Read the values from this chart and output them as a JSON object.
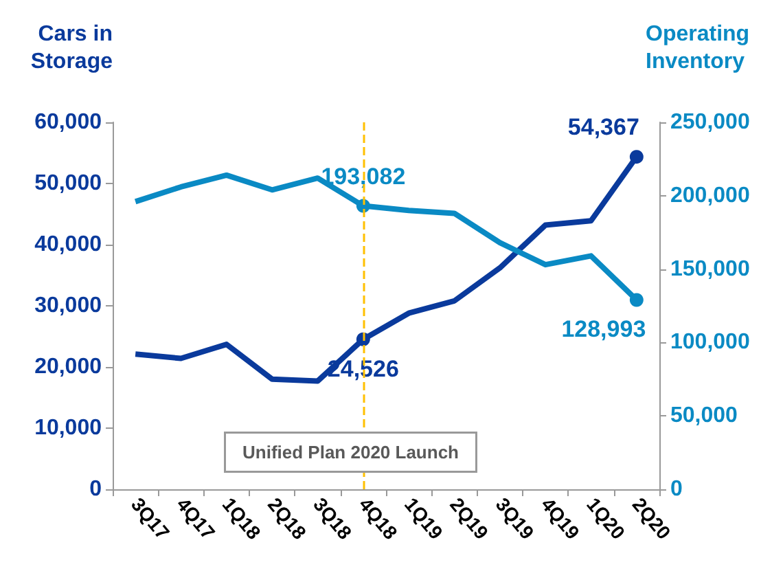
{
  "chart_data": {
    "type": "line",
    "ylabel": "Cars in Storage",
    "y2label": "Operating Inventory",
    "categories": [
      "3Q17",
      "4Q17",
      "1Q18",
      "2Q18",
      "3Q18",
      "4Q18",
      "1Q19",
      "2Q19",
      "3Q19",
      "4Q19",
      "1Q20",
      "2Q20"
    ],
    "series": [
      {
        "color": "#0a3a9c",
        "values": [
          22100,
          21400,
          23700,
          18000,
          17700,
          24526,
          28800,
          30800,
          36200,
          43200,
          43900,
          54367
        ],
        "value_labels": [
          null,
          null,
          null,
          null,
          null,
          "24,526",
          null,
          null,
          null,
          null,
          null,
          "54,367"
        ]
      },
      {
        "color": "#0a8ac4",
        "axis": "y2",
        "values": [
          196000,
          206000,
          214000,
          204000,
          212000,
          193082,
          190000,
          188000,
          168000,
          153000,
          159000,
          128993
        ],
        "value_labels": [
          null,
          null,
          null,
          null,
          null,
          "193,082",
          null,
          null,
          null,
          null,
          null,
          "128,993"
        ]
      }
    ],
    "ylim": [
      0,
      60000
    ],
    "yticks": [
      0,
      {
        "value": 10000,
        "label": "10,000"
      },
      {
        "value": 20000,
        "label": "20,000"
      },
      {
        "value": 30000,
        "label": "30,000"
      },
      {
        "value": 40000,
        "label": "40,000"
      },
      {
        "value": 50000,
        "label": "50,000"
      },
      {
        "value": 60000,
        "label": "60,000"
      }
    ],
    "y2lim": [
      0,
      250000
    ],
    "y2ticks": [
      0,
      {
        "value": 50000,
        "label": "50,000"
      },
      {
        "value": 100000,
        "label": "100,000"
      },
      {
        "value": 150000,
        "label": "150,000"
      },
      {
        "value": 200000,
        "label": "200,000"
      },
      {
        "value": 250000,
        "label": "250,000"
      }
    ],
    "ref_lines": [
      {
        "axis": "x",
        "value": "4Q18",
        "color": "#ffc000",
        "line_style": "dashed"
      }
    ],
    "annotations": [
      "Unified Plan 2020 Launch"
    ],
    "grid": false
  }
}
